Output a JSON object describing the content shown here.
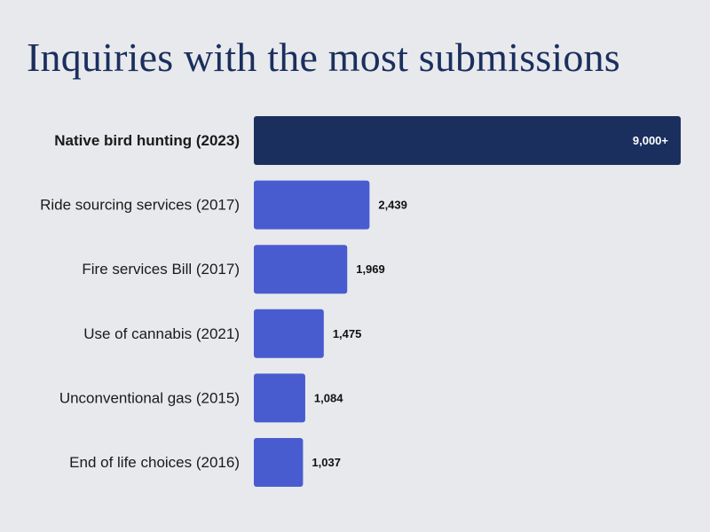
{
  "chart_data": {
    "type": "bar",
    "orientation": "horizontal",
    "title": "Inquiries with the most submissions",
    "categories": [
      "Native bird hunting (2023)",
      "Ride sourcing services (2017)",
      "Fire services Bill (2017)",
      "Use of cannabis (2021)",
      "Unconventional gas (2015)",
      "End of life choices (2016)"
    ],
    "values": [
      9000,
      2439,
      1969,
      1475,
      1084,
      1037
    ],
    "value_labels": [
      "9,000+",
      "2,439",
      "1,969",
      "1,475",
      "1,084",
      "1,037"
    ],
    "highlight_index": 0,
    "xlim": [
      0,
      9000
    ],
    "grid": false,
    "colors": {
      "highlight": "#1b2f5e",
      "bar": "#485ccf"
    }
  }
}
